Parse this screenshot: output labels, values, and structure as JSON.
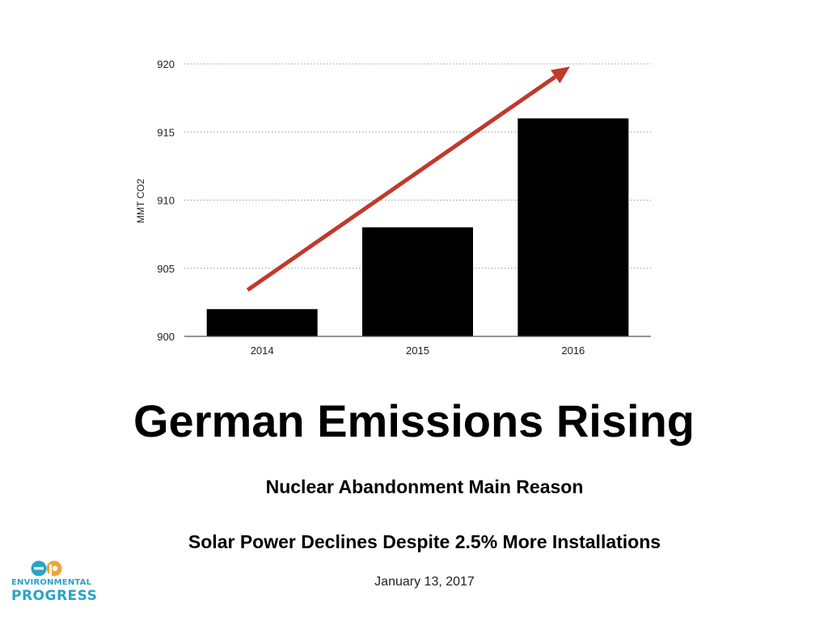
{
  "chart_data": {
    "type": "bar",
    "categories": [
      "2014",
      "2015",
      "2016"
    ],
    "values": [
      902,
      908,
      916
    ],
    "ylabel": "MMT CO2",
    "xlabel": "",
    "ylim": [
      900,
      920
    ],
    "yticks": [
      900,
      905,
      910,
      915,
      920
    ],
    "grid": true,
    "bar_color": "#000000",
    "annotation_arrow": {
      "from": {
        "category": "2014",
        "value": 903.4
      },
      "to": {
        "category": "2016",
        "value": 919.8
      },
      "color": "#c0392b"
    }
  },
  "slide": {
    "title": "German Emissions Rising",
    "subtitle_1": "Nuclear Abandonment Main Reason",
    "subtitle_2": "Solar Power Declines Despite 2.5% More Installations",
    "date": "January 13, 2017"
  },
  "logo": {
    "mark": "ep-logo-icon",
    "line_1": "ENVIRONMENTAL",
    "line_2": "PROGRESS",
    "colors": {
      "blue": "#2aa3c7",
      "orange": "#f0a33a"
    }
  }
}
